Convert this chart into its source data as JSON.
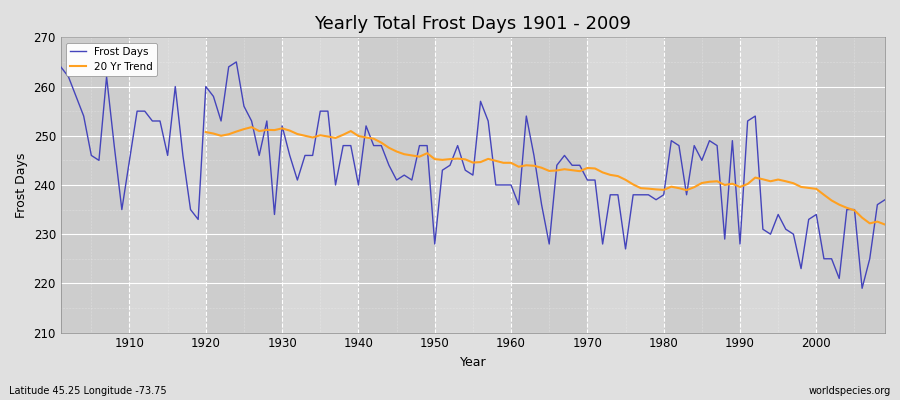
{
  "title": "Yearly Total Frost Days 1901 - 2009",
  "xlabel": "Year",
  "ylabel": "Frost Days",
  "subtitle": "Latitude 45.25 Longitude -73.75",
  "watermark": "worldspecies.org",
  "bg_color": "#e0e0e0",
  "plot_bg_color": "#d8d8d8",
  "blue_color": "#4444bb",
  "orange_color": "#ffa020",
  "ylim": [
    210,
    270
  ],
  "xlim": [
    1901,
    2009
  ],
  "yticks": [
    210,
    220,
    230,
    240,
    250,
    260,
    270
  ],
  "xticks": [
    1910,
    1920,
    1930,
    1940,
    1950,
    1960,
    1970,
    1980,
    1990,
    2000
  ],
  "years": [
    1901,
    1902,
    1903,
    1904,
    1905,
    1906,
    1907,
    1908,
    1909,
    1910,
    1911,
    1912,
    1913,
    1914,
    1915,
    1916,
    1917,
    1918,
    1919,
    1920,
    1921,
    1922,
    1923,
    1924,
    1925,
    1926,
    1927,
    1928,
    1929,
    1930,
    1931,
    1932,
    1933,
    1934,
    1935,
    1936,
    1937,
    1938,
    1939,
    1940,
    1941,
    1942,
    1943,
    1944,
    1945,
    1946,
    1947,
    1948,
    1949,
    1950,
    1951,
    1952,
    1953,
    1954,
    1955,
    1956,
    1957,
    1958,
    1959,
    1960,
    1961,
    1962,
    1963,
    1964,
    1965,
    1966,
    1967,
    1968,
    1969,
    1970,
    1971,
    1972,
    1973,
    1974,
    1975,
    1976,
    1977,
    1978,
    1979,
    1980,
    1981,
    1982,
    1983,
    1984,
    1985,
    1986,
    1987,
    1988,
    1989,
    1990,
    1991,
    1992,
    1993,
    1994,
    1995,
    1996,
    1997,
    1998,
    1999,
    2000,
    2001,
    2002,
    2003,
    2004,
    2005,
    2006,
    2007,
    2008,
    2009
  ],
  "frost_days": [
    264,
    262,
    258,
    254,
    246,
    245,
    262,
    248,
    235,
    245,
    255,
    255,
    253,
    253,
    246,
    260,
    246,
    235,
    233,
    260,
    258,
    253,
    264,
    265,
    256,
    253,
    246,
    253,
    234,
    252,
    246,
    241,
    246,
    246,
    255,
    255,
    240,
    248,
    248,
    240,
    252,
    248,
    248,
    244,
    241,
    242,
    241,
    248,
    248,
    228,
    243,
    244,
    248,
    243,
    242,
    257,
    253,
    240,
    240,
    240,
    236,
    254,
    246,
    236,
    228,
    244,
    246,
    244,
    244,
    241,
    241,
    228,
    238,
    238,
    227,
    238,
    238,
    238,
    237,
    238,
    249,
    248,
    238,
    248,
    245,
    249,
    248,
    229,
    249,
    228,
    253,
    254,
    231,
    230,
    234,
    231,
    230,
    223,
    233,
    234,
    225,
    225,
    221,
    235,
    235,
    219,
    225,
    236,
    237
  ]
}
